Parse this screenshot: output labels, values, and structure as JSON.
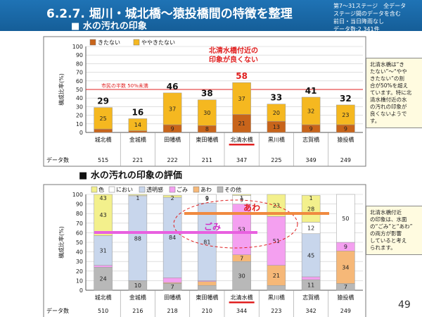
{
  "page": {
    "title": "6.2.7. 堀川・城北橋～猿投橋間の特徴を整理",
    "subtitle": "水の汚れの印象",
    "section2": "水の汚れの印象の評価",
    "notes": [
      "第7～31ステージ　全データ",
      "ステージ間のデータを含む",
      "前日・当日降雨なし",
      "データ数:2,341件"
    ],
    "page_number": "49",
    "callout1": [
      "北清水橋は“き",
      "たない”～“やや",
      "きたない”の割",
      "合が50%を超え",
      "ています。特に北",
      "清水橋付近の水",
      "の汚れの印象が",
      "良くないようで",
      "す。"
    ],
    "callout2": [
      "北清水橋付近",
      "の印象は、水面",
      "の“ごみ”と“あわ”",
      "の両方が影響",
      "していると考え",
      "られます。"
    ],
    "colors": {
      "header": "#1f73b5",
      "highlight": "#e02020",
      "kitanai": "#c8641a",
      "yaya": "#f5b820",
      "gomi": "#f4a0f0",
      "awa": "#f6b878",
      "toumei": "#c8d6ec",
      "sonota": "#b8b8b8",
      "iro": "#f3f08c"
    }
  },
  "chart_data": [
    {
      "type": "bar",
      "stacked": true,
      "categories": [
        "城北橋",
        "金城橋",
        "田幡橋",
        "東田幡橋",
        "北清水橋",
        "黒川橋",
        "志賀橋",
        "猿投橋"
      ],
      "counts": [
        515,
        221,
        222,
        211,
        347,
        225,
        349,
        249
      ],
      "count_label": "データ数",
      "ylabel": "構成比率(%)",
      "ylim": [
        0,
        100
      ],
      "yticks": [
        0,
        10,
        20,
        30,
        40,
        50,
        60,
        70,
        80,
        90,
        100
      ],
      "series": [
        {
          "name": "きたない",
          "values": [
            4,
            2,
            9,
            8,
            21,
            13,
            9,
            9
          ],
          "color": "#c8641a"
        },
        {
          "name": "ややきたない",
          "values": [
            25,
            14,
            37,
            30,
            37,
            20,
            32,
            23
          ],
          "color": "#f5b820"
        }
      ],
      "totals": [
        29,
        16,
        46,
        38,
        58,
        33,
        41,
        32
      ],
      "reference_line": {
        "value": 50,
        "label": "市民の半数 50%未満"
      },
      "annotation": [
        "北清水橋付近の",
        "印象が良くない"
      ],
      "highlight_category": "北清水橋",
      "grid": true
    },
    {
      "type": "bar",
      "stacked": true,
      "categories": [
        "城北橋",
        "金城橋",
        "田幡橋",
        "東田幡橋",
        "北清水橋",
        "黒川橋",
        "志賀橋",
        "猿投橋"
      ],
      "counts": [
        510,
        216,
        218,
        210,
        344,
        223,
        342,
        249
      ],
      "count_label": "データ数",
      "ylabel": "構成比率(%)",
      "ylim": [
        0,
        100
      ],
      "yticks": [
        0,
        10,
        20,
        30,
        40,
        50,
        60,
        70,
        80,
        90,
        100
      ],
      "series": [
        {
          "name": "その他",
          "values": [
            24,
            10,
            7,
            5,
            30,
            5,
            11,
            7
          ],
          "color": "#b8b8b8"
        },
        {
          "name": "あわ",
          "values": [
            0,
            0,
            1,
            4,
            7,
            21,
            0,
            34
          ],
          "color": "#f6b878"
        },
        {
          "name": "ごみ",
          "values": [
            2,
            0,
            5,
            1,
            53,
            51,
            3,
            9
          ],
          "color": "#f4a0f0"
        },
        {
          "name": "透明感",
          "values": [
            31,
            88,
            84,
            81,
            0,
            0,
            45,
            0
          ],
          "color": "#c8d6ec"
        },
        {
          "name": "におい",
          "values": [
            0,
            1,
            0,
            9,
            9,
            0,
            12,
            50
          ],
          "color": "#ffffff"
        },
        {
          "name": "色",
          "values": [
            43,
            1,
            2,
            0,
            1,
            23,
            28,
            0
          ],
          "color": "#f3f08c"
        }
      ],
      "labels_top": [
        "43",
        "1",
        "2",
        "9",
        "1",
        "",
        "1",
        ""
      ],
      "annotations": {
        "awa": "あわ",
        "gomi": "ごみ"
      },
      "highlight_category": "北清水橋",
      "grid": true
    }
  ]
}
